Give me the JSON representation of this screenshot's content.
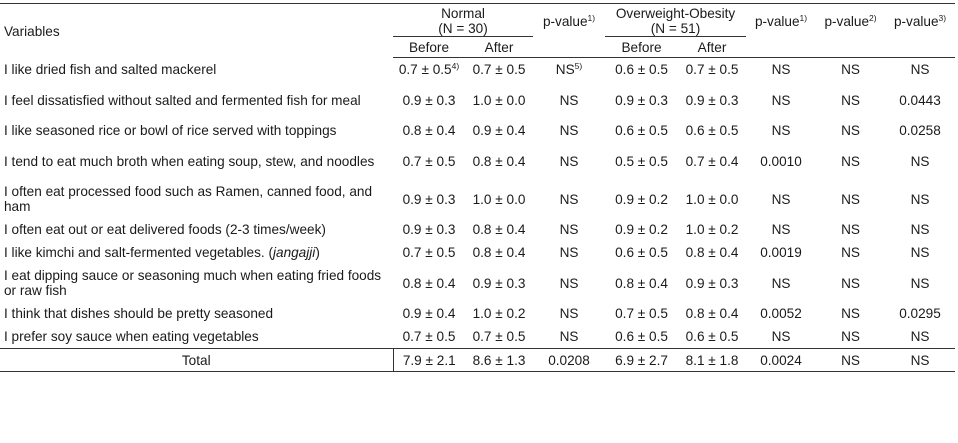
{
  "header": {
    "variables": "Variables",
    "normal_group": "Normal",
    "normal_n": "(N = 30)",
    "obese_group": "Overweight-Obesity",
    "obese_n": "(N = 51)",
    "pvalue1": "p-value",
    "pvalue1_sup": "1)",
    "pvalue2": "p-value",
    "pvalue2_sup": "2)",
    "pvalue3": "p-value",
    "pvalue3_sup": "3)",
    "before": "Before",
    "after": "After"
  },
  "rows": [
    {
      "label": "I like dried fish and salted mackerel",
      "nb": "0.7 ± 0.5",
      "nb_sup": "4)",
      "na": "0.7 ± 0.5",
      "p1": "NS",
      "p1_sup": "5)",
      "ob": "0.6 ± 0.5",
      "oa": "0.7 ± 0.5",
      "p1b": "NS",
      "p2": "NS",
      "p3": "NS"
    },
    {
      "label": "I feel dissatisfied without salted and fermented fish for meal",
      "nb": "0.9 ± 0.3",
      "na": "1.0 ± 0.0",
      "p1": "NS",
      "ob": "0.9 ± 0.3",
      "oa": "0.9 ± 0.3",
      "p1b": "NS",
      "p2": "NS",
      "p3": "0.0443"
    },
    {
      "label": "I like seasoned rice or bowl of rice served with toppings",
      "nb": "0.8 ± 0.4",
      "na": "0.9 ± 0.4",
      "p1": "NS",
      "ob": "0.6 ± 0.5",
      "oa": "0.6 ± 0.5",
      "p1b": "NS",
      "p2": "NS",
      "p3": "0.0258"
    },
    {
      "label": "I tend to eat much broth when eating soup, stew, and noodles",
      "nb": "0.7 ± 0.5",
      "na": "0.8 ± 0.4",
      "p1": "NS",
      "ob": "0.5 ± 0.5",
      "oa": "0.7 ± 0.4",
      "p1b": "0.0010",
      "p2": "NS",
      "p3": "NS"
    },
    {
      "label": "I often eat processed food such as Ramen, canned food, and ham",
      "nb": "0.9 ± 0.3",
      "na": "1.0 ± 0.0",
      "p1": "NS",
      "ob": "0.9 ± 0.2",
      "oa": "1.0 ± 0.0",
      "p1b": "NS",
      "p2": "NS",
      "p3": "NS"
    },
    {
      "label": "I often eat out or eat delivered foods (2-3 times/week)",
      "nb": "0.9 ± 0.3",
      "na": "0.8 ±  0.4",
      "p1": "NS",
      "ob": "0.9 ±  0.2",
      "oa": "1.0 ±  0.2",
      "p1b": "NS",
      "p2": "NS",
      "p3": "NS"
    },
    {
      "label": "I like kimchi and salt-fermented vegetables. (",
      "label_italic": "jangajji",
      "label_end": ")",
      "nb": "0.7 ± 0.5",
      "na": "0.8 ± 0.4",
      "p1": "NS",
      "ob": "0.6 ± 0.5",
      "oa": "0.8 ± 0.4",
      "p1b": "0.0019",
      "p2": "NS",
      "p3": "NS"
    },
    {
      "label": "I eat dipping sauce or seasoning much when eating fried foods or raw fish",
      "nb": "0.8 ± 0.4",
      "na": "0.9 ± 0.3",
      "p1": "NS",
      "ob": "0.8 ± 0.4",
      "oa": "0.9 ± 0.3",
      "p1b": "NS",
      "p2": "NS",
      "p3": "NS"
    },
    {
      "label": "I think that dishes should be pretty seasoned",
      "nb": "0.9 ± 0.4",
      "na": "1.0 ± 0.2",
      "p1": "NS",
      "ob": "0.7 ± 0.5",
      "oa": "0.8 ± 0.4",
      "p1b": "0.0052",
      "p2": "NS",
      "p3": "0.0295"
    },
    {
      "label": "I prefer soy sauce when eating vegetables",
      "nb": "0.7 ± 0.5",
      "na": "0.7 ± 0.5",
      "p1": "NS",
      "ob": "0.6 ± 0.5",
      "oa": "0.6 ± 0.5",
      "p1b": "NS",
      "p2": "NS",
      "p3": "NS"
    }
  ],
  "total": {
    "label": "Total",
    "nb": "7.9 ± 2.1",
    "na": "8.6 ± 1.3",
    "p1": "0.0208",
    "ob": "6.9 ± 2.7",
    "oa": "8.1 ± 1.8",
    "p1b": "0.0024",
    "p2": "NS",
    "p3": "NS"
  }
}
